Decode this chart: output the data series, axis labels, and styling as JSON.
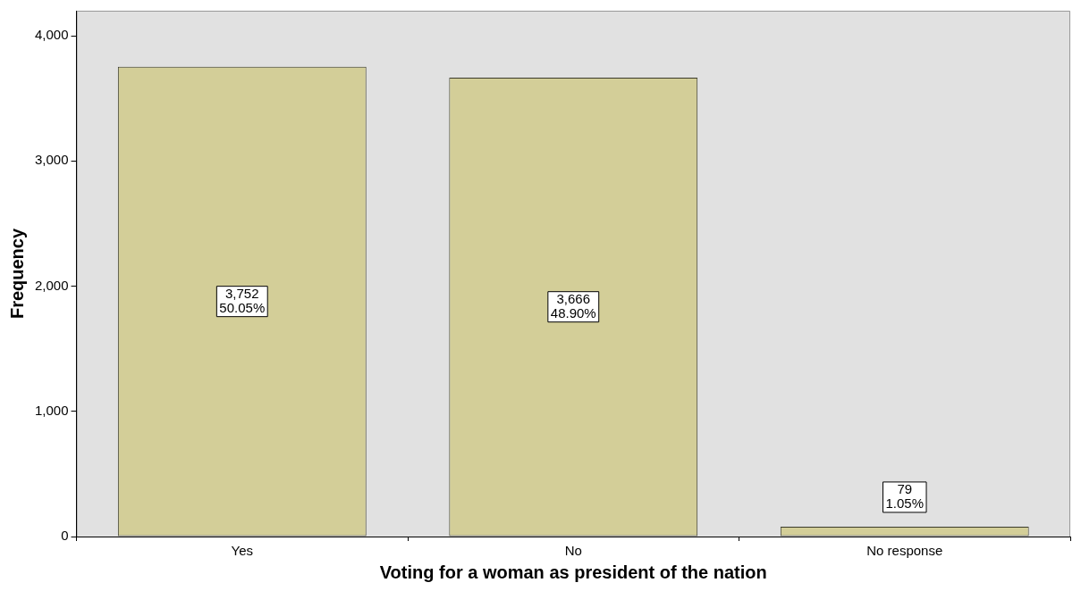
{
  "chart_data": {
    "type": "bar",
    "xlabel": "Voting for a woman as president of the nation",
    "ylabel": "Frequency",
    "categories": [
      "Yes",
      "No",
      "No response"
    ],
    "values": [
      3752,
      3666,
      79
    ],
    "value_labels": [
      "3,752\n50.05%",
      "3,666\n48.90%",
      "79\n1.05%"
    ],
    "color": "#d3ce98",
    "ylim": [
      0,
      4200
    ],
    "yticks": [
      {
        "value": 0,
        "label": "0"
      },
      {
        "value": 1000,
        "label": "1,000"
      },
      {
        "value": 2000,
        "label": "2,000"
      },
      {
        "value": 3000,
        "label": "3,000"
      },
      {
        "value": 4000,
        "label": "4,000"
      }
    ],
    "legend": false,
    "grid": false
  }
}
